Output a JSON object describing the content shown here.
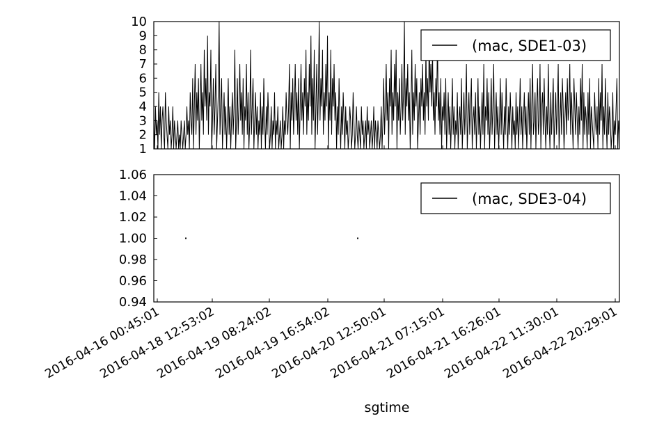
{
  "chart_data": [
    {
      "type": "line",
      "series": [
        {
          "name": "(mac, SDE1-03)",
          "color": "#000000",
          "values": [
            3,
            1,
            4,
            2,
            3,
            1,
            5,
            2,
            4,
            1,
            3,
            4,
            2,
            1,
            5,
            3,
            2,
            1,
            4,
            2,
            3,
            1,
            2,
            4,
            1,
            3,
            2,
            1,
            2,
            3,
            1,
            2,
            1,
            3,
            2,
            1,
            2,
            3,
            1,
            2,
            4,
            2,
            3,
            1,
            5,
            3,
            2,
            6,
            1,
            4,
            7,
            2,
            5,
            3,
            6,
            1,
            4,
            7,
            3,
            5,
            2,
            8,
            4,
            6,
            3,
            9,
            2,
            5,
            4,
            8,
            1,
            3,
            6,
            2,
            4,
            7,
            1,
            3,
            5,
            10,
            2,
            4,
            6,
            1,
            3,
            5,
            2,
            4,
            1,
            3,
            6,
            2,
            4,
            1,
            3,
            5,
            2,
            4,
            8,
            1,
            3,
            6,
            2,
            4,
            7,
            3,
            5,
            2,
            6,
            1,
            4,
            3,
            7,
            2,
            5,
            1,
            3,
            8,
            2,
            4,
            6,
            1,
            3,
            5,
            2,
            4,
            1,
            3,
            2,
            5,
            1,
            4,
            2,
            6,
            3,
            1,
            4,
            2,
            5,
            3,
            1,
            2,
            4,
            1,
            3,
            2,
            5,
            1,
            3,
            2,
            4,
            1,
            2,
            3,
            1,
            2,
            4,
            1,
            3,
            2,
            5,
            3,
            2,
            4,
            7,
            1,
            5,
            3,
            6,
            2,
            4,
            7,
            3,
            5,
            2,
            6,
            1,
            4,
            7,
            3,
            5,
            2,
            6,
            4,
            8,
            2,
            5,
            3,
            7,
            4,
            9,
            2,
            6,
            3,
            8,
            1,
            4,
            7,
            2,
            5,
            10,
            3,
            6,
            4,
            8,
            2,
            5,
            3,
            7,
            4,
            9,
            1,
            5,
            3,
            8,
            2,
            6,
            4,
            7,
            3,
            5,
            1,
            4,
            2,
            6,
            3,
            1,
            4,
            2,
            5,
            3,
            1,
            4,
            2,
            3,
            1,
            2,
            4,
            3,
            1,
            2,
            5,
            3,
            1,
            2,
            4,
            2,
            1,
            3,
            2,
            1,
            4,
            2,
            3,
            1,
            2,
            3,
            1,
            4,
            2,
            3,
            1,
            2,
            3,
            1,
            2,
            4,
            1,
            3,
            2,
            1,
            3,
            2,
            1,
            2,
            4,
            1,
            3,
            6,
            2,
            4,
            7,
            3,
            5,
            1,
            6,
            4,
            8,
            2,
            5,
            3,
            7,
            4,
            8,
            1,
            5,
            3,
            6,
            2,
            4,
            7,
            3,
            5,
            10,
            2,
            6,
            4,
            7,
            3,
            5,
            1,
            4,
            8,
            2,
            5,
            3,
            7,
            4,
            6,
            1,
            3,
            5,
            2,
            6,
            4,
            7,
            3,
            5,
            2,
            8,
            4,
            6,
            3,
            9,
            5,
            7,
            4,
            8,
            3,
            5,
            2,
            6,
            4,
            9,
            3,
            5,
            2,
            6,
            1,
            4,
            3,
            5,
            2,
            6,
            1,
            3,
            5,
            2,
            4,
            1,
            3,
            6,
            2,
            4,
            1,
            3,
            2,
            5,
            1,
            3,
            4,
            2,
            6,
            1,
            3,
            5,
            2,
            4,
            7,
            1,
            3,
            5,
            2,
            4,
            6,
            1,
            3,
            4,
            2,
            5,
            1,
            3,
            6,
            2,
            4,
            1,
            3,
            5,
            2,
            7,
            1,
            4,
            3,
            6,
            2,
            5,
            1,
            3,
            6,
            2,
            4,
            7,
            1,
            3,
            5,
            2,
            4,
            1,
            3,
            6,
            2,
            5,
            3,
            1,
            4,
            2,
            6,
            3,
            1,
            4,
            2,
            5,
            3,
            1,
            4,
            2,
            3,
            1,
            5,
            2,
            4,
            1,
            3,
            6,
            2,
            4,
            1,
            3,
            5,
            2,
            4,
            1,
            3,
            5,
            2,
            6,
            1,
            4,
            7,
            2,
            3,
            5,
            1,
            4,
            6,
            2,
            3,
            7,
            1,
            4,
            5,
            2,
            6,
            3,
            1,
            4,
            2,
            7,
            3,
            1,
            5,
            2,
            4,
            6,
            1,
            3,
            5,
            2,
            4,
            7,
            1,
            3,
            5,
            2,
            6,
            4,
            1,
            3,
            5,
            2,
            6,
            3,
            4,
            7,
            2,
            5,
            3,
            1,
            6,
            4,
            2,
            5,
            3,
            1,
            4,
            2,
            6,
            3,
            7,
            1,
            5,
            2,
            4,
            3,
            1,
            5,
            2,
            6,
            1,
            4,
            3,
            2,
            1,
            5,
            3,
            2,
            4,
            1,
            6,
            2,
            5,
            3,
            7,
            1,
            4,
            2,
            6,
            3,
            1,
            5,
            2,
            4,
            3,
            1,
            2,
            5,
            1,
            3,
            2,
            4,
            6,
            1,
            3,
            2
          ]
        }
      ],
      "x_tick_labels": [
        "2016-04-16 00:45:01",
        "2016-04-18 12:53:02",
        "2016-04-19 08:24:02",
        "2016-04-19 16:54:02",
        "2016-04-20 12:50:01",
        "2016-04-21 07:15:01",
        "2016-04-21 16:26:01",
        "2016-04-22 11:30:01",
        "2016-04-22 20:29:01"
      ],
      "y_ticks": [
        "1",
        "2",
        "3",
        "4",
        "5",
        "6",
        "7",
        "8",
        "9",
        "10"
      ],
      "ylim": [
        1,
        10
      ],
      "legend": {
        "entries": [
          "(mac, SDE1-03)"
        ],
        "position": "upper-right"
      },
      "grid": false
    },
    {
      "type": "line",
      "series": [
        {
          "name": "(mac, SDE3-04)",
          "color": "#000000",
          "points": [
            {
              "x": "2016-04-18 12:53:02",
              "y": 1.0
            },
            {
              "x": "2016-04-20 12:50:01",
              "y": 1.0
            }
          ]
        }
      ],
      "x_tick_labels": [
        "2016-04-16 00:45:01",
        "2016-04-18 12:53:02",
        "2016-04-19 08:24:02",
        "2016-04-19 16:54:02",
        "2016-04-20 12:50:01",
        "2016-04-21 07:15:01",
        "2016-04-21 16:26:01",
        "2016-04-22 11:30:01",
        "2016-04-22 20:29:01"
      ],
      "y_ticks": [
        "0.94",
        "0.96",
        "0.98",
        "1.00",
        "1.02",
        "1.04",
        "1.06"
      ],
      "ylim": [
        0.94,
        1.06
      ],
      "xlabel": "sgtime",
      "legend": {
        "entries": [
          "(mac, SDE3-04)"
        ],
        "position": "upper-right"
      },
      "grid": false
    }
  ]
}
